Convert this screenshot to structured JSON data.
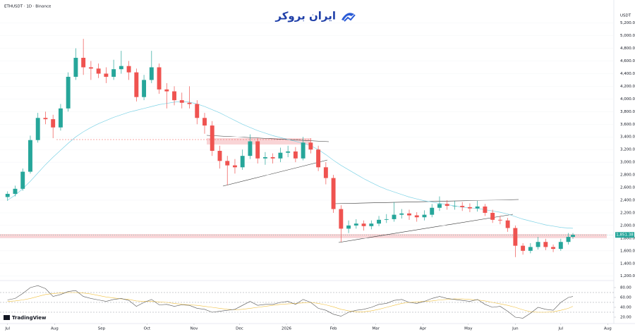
{
  "logo_text": "ایران بروکر",
  "brand": "TradingView",
  "chart_data": {
    "type": "candlestick",
    "title": "ETHUSDT · 1D · Binance",
    "currency": "USDT",
    "colors": {
      "up": "#26a69a",
      "down": "#ef5350"
    },
    "x": [
      0,
      5,
      10,
      15,
      20,
      25,
      30,
      35,
      40,
      45,
      50,
      55,
      60,
      65,
      70,
      75,
      80,
      85,
      90,
      95,
      100,
      105,
      110,
      115,
      120,
      125,
      130,
      135,
      140,
      145,
      150,
      155,
      160,
      165,
      170,
      175,
      180,
      185,
      190,
      195,
      200,
      205,
      210,
      215,
      220,
      225,
      230,
      235,
      240,
      245,
      250,
      255,
      260,
      265,
      270,
      275,
      280,
      285,
      290,
      295,
      300,
      305,
      310,
      315,
      320,
      325,
      330,
      335,
      340,
      345,
      350,
      355,
      360,
      365,
      370,
      373
    ],
    "open": [
      2450,
      2500,
      2580,
      2850,
      3350,
      3700,
      3680,
      3550,
      3850,
      4350,
      4650,
      4500,
      4480,
      4400,
      4350,
      4470,
      4520,
      4420,
      4030,
      4300,
      4500,
      4150,
      4120,
      3980,
      3940,
      3920,
      3700,
      3580,
      3180,
      3020,
      2950,
      2920,
      3100,
      3330,
      3060,
      3080,
      3060,
      3150,
      3170,
      3060,
      3310,
      3200,
      2920,
      2750,
      2260,
      1950,
      2000,
      2030,
      1990,
      2030,
      2090,
      2100,
      2170,
      2190,
      2160,
      2130,
      2170,
      2280,
      2340,
      2310,
      2310,
      2290,
      2270,
      2300,
      2200,
      2090,
      2080,
      1960,
      1680,
      1600,
      1660,
      1740,
      1660,
      1630,
      1740,
      1820
    ],
    "high": [
      2540,
      2630,
      2900,
      3420,
      3780,
      3800,
      3750,
      3920,
      4420,
      4800,
      4950,
      4600,
      4560,
      4500,
      4620,
      4760,
      4600,
      4480,
      4380,
      4760,
      4560,
      4250,
      4200,
      4100,
      4200,
      3980,
      3780,
      3650,
      3260,
      3100,
      3050,
      3200,
      3440,
      3380,
      3160,
      3140,
      3230,
      3260,
      3240,
      3400,
      3380,
      3260,
      3000,
      2800,
      2320,
      2080,
      2100,
      2080,
      2080,
      2150,
      2180,
      2370,
      2260,
      2250,
      2210,
      2240,
      2340,
      2460,
      2400,
      2390,
      2370,
      2350,
      2390,
      2340,
      2250,
      2150,
      2120,
      2000,
      1720,
      1720,
      1820,
      1790,
      1700,
      1790,
      1880,
      1880
    ],
    "low": [
      2390,
      2460,
      2550,
      2820,
      3310,
      3600,
      3380,
      3500,
      3800,
      4300,
      4380,
      4300,
      4330,
      4250,
      4300,
      4400,
      4300,
      3960,
      3980,
      4250,
      4080,
      3850,
      3900,
      3850,
      3850,
      3600,
      3450,
      3100,
      2900,
      2640,
      2820,
      2880,
      3050,
      2980,
      2960,
      2980,
      3000,
      3080,
      3000,
      3030,
      3140,
      2860,
      2650,
      2200,
      1740,
      1880,
      1950,
      1920,
      1940,
      1990,
      2040,
      2060,
      2110,
      2090,
      2060,
      2080,
      2130,
      2230,
      2250,
      2250,
      2230,
      2210,
      2220,
      2150,
      2040,
      2020,
      1900,
      1500,
      1540,
      1560,
      1620,
      1610,
      1580,
      1600,
      1700,
      1790
    ],
    "close": [
      2500,
      2580,
      2850,
      3350,
      3700,
      3680,
      3550,
      3850,
      4350,
      4650,
      4500,
      4480,
      4400,
      4350,
      4470,
      4520,
      4420,
      4030,
      4300,
      4500,
      4150,
      4120,
      3980,
      3940,
      3920,
      3700,
      3580,
      3180,
      3020,
      2950,
      2920,
      3100,
      3330,
      3060,
      3080,
      3060,
      3150,
      3170,
      3060,
      3310,
      3200,
      2920,
      2750,
      2260,
      1950,
      2000,
      2030,
      1990,
      2030,
      2090,
      2100,
      2170,
      2190,
      2160,
      2130,
      2170,
      2280,
      2340,
      2310,
      2310,
      2290,
      2270,
      2300,
      2200,
      2090,
      2080,
      1960,
      1680,
      1600,
      1660,
      1740,
      1660,
      1630,
      1740,
      1820,
      1851.38
    ],
    "last_price_label": "1,851.38",
    "ma": {
      "color": "#7fd3e6",
      "values": [
        2400,
        2480,
        2580,
        2700,
        2830,
        2960,
        3080,
        3190,
        3300,
        3400,
        3480,
        3550,
        3610,
        3660,
        3710,
        3750,
        3790,
        3820,
        3850,
        3880,
        3910,
        3930,
        3950,
        3960,
        3950,
        3920,
        3880,
        3830,
        3780,
        3720,
        3660,
        3600,
        3550,
        3500,
        3460,
        3420,
        3390,
        3360,
        3330,
        3300,
        3260,
        3200,
        3120,
        3030,
        2950,
        2880,
        2810,
        2740,
        2680,
        2620,
        2570,
        2530,
        2490,
        2450,
        2420,
        2390,
        2370,
        2350,
        2330,
        2310,
        2290,
        2280,
        2270,
        2250,
        2230,
        2210,
        2180,
        2140,
        2100,
        2070,
        2040,
        2010,
        1990,
        1970,
        1960,
        1955
      ]
    },
    "xlim": [
      -5,
      400
    ],
    "xticks": [
      {
        "value": 0,
        "label": "Jul"
      },
      {
        "value": 31,
        "label": "Aug"
      },
      {
        "value": 62,
        "label": "Sep"
      },
      {
        "value": 92,
        "label": "Oct"
      },
      {
        "value": 123,
        "label": "Nov"
      },
      {
        "value": 153,
        "label": "Dec"
      },
      {
        "value": 184,
        "label": "2026"
      },
      {
        "value": 215,
        "label": "Feb"
      },
      {
        "value": 243,
        "label": "Mar"
      },
      {
        "value": 274,
        "label": "Apr"
      },
      {
        "value": 304,
        "label": "May"
      },
      {
        "value": 335,
        "label": "Jun"
      },
      {
        "value": 365,
        "label": "Jul"
      },
      {
        "value": 396,
        "label": "Aug"
      }
    ],
    "ylim": [
      1130,
      5430
    ],
    "yticks": [
      {
        "value": 1200,
        "label": "1,200.00"
      },
      {
        "value": 1400,
        "label": "1,400.00"
      },
      {
        "value": 1600,
        "label": "1,600.00"
      },
      {
        "value": 1800,
        "label": "1,800.00"
      },
      {
        "value": 2000,
        "label": "2,000.00"
      },
      {
        "value": 2200,
        "label": "2,200.00"
      },
      {
        "value": 2400,
        "label": "2,400.00"
      },
      {
        "value": 2600,
        "label": "2,600.00"
      },
      {
        "value": 2800,
        "label": "2,800.00"
      },
      {
        "value": 3000,
        "label": "3,000.00"
      },
      {
        "value": 3200,
        "label": "3,200.00"
      },
      {
        "value": 3400,
        "label": "3,400.00"
      },
      {
        "value": 3600,
        "label": "3,600.00"
      },
      {
        "value": 3800,
        "label": "3,800.00"
      },
      {
        "value": 4000,
        "label": "4,000.00"
      },
      {
        "value": 4200,
        "label": "4,200.00"
      },
      {
        "value": 4400,
        "label": "4,400.00"
      },
      {
        "value": 4600,
        "label": "4,600.00"
      },
      {
        "value": 4800,
        "label": "4,800.00"
      },
      {
        "value": 5000,
        "label": "5,000.00"
      },
      {
        "value": 5200,
        "label": "5,200.00"
      }
    ],
    "rsi": {
      "color": "#555555",
      "ma_color": "#f0c040",
      "values": [
        55,
        58,
        68,
        80,
        84,
        78,
        62,
        66,
        72,
        74,
        62,
        58,
        55,
        52,
        56,
        58,
        54,
        42,
        50,
        56,
        45,
        46,
        42,
        45,
        44,
        38,
        36,
        30,
        32,
        34,
        36,
        44,
        52,
        44,
        46,
        46,
        50,
        52,
        46,
        56,
        50,
        38,
        34,
        26,
        22,
        30,
        34,
        36,
        40,
        46,
        48,
        54,
        56,
        50,
        48,
        52,
        58,
        62,
        58,
        56,
        54,
        52,
        56,
        46,
        40,
        42,
        32,
        20,
        18,
        28,
        40,
        36,
        34,
        50,
        60,
        62
      ],
      "ma": [
        52,
        53,
        55,
        58,
        62,
        66,
        68,
        69,
        70,
        70,
        69,
        67,
        64,
        61,
        59,
        57,
        56,
        53,
        52,
        52,
        51,
        50,
        48,
        46,
        45,
        44,
        42,
        40,
        38,
        36,
        35,
        36,
        38,
        40,
        42,
        44,
        46,
        47,
        48,
        49,
        50,
        48,
        45,
        41,
        36,
        33,
        31,
        31,
        33,
        36,
        40,
        44,
        48,
        50,
        51,
        52,
        53,
        55,
        56,
        57,
        57,
        56,
        55,
        53,
        50,
        47,
        44,
        40,
        35,
        31,
        30,
        30,
        31,
        34,
        38,
        42
      ],
      "ylim": [
        11.4,
        91.4
      ],
      "yticks": [
        {
          "value": 80,
          "label": "80.00"
        },
        {
          "value": 60,
          "label": "60.00"
        },
        {
          "value": 40,
          "label": "40.00"
        },
        {
          "value": 20,
          "label": "20.00"
        }
      ],
      "levels": [
        70,
        50,
        30
      ]
    }
  }
}
